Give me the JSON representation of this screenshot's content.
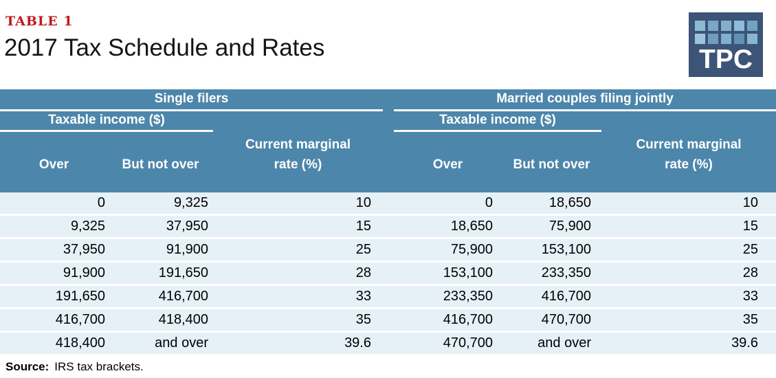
{
  "page": {
    "table_label": "TABLE 1",
    "title": "2017 Tax Schedule and Rates"
  },
  "logo": {
    "text": "TPC",
    "tiles": [
      "#8FBAD4",
      "#79A7C6",
      "#83B0CC",
      "#8FBCD8",
      "#74A2C2",
      "#9CC4DC",
      "#6E9DBE",
      "#7FB0CC",
      "#6291B4",
      "#88B6D2"
    ]
  },
  "colors": {
    "header_bg": "#4D86AB",
    "row_bg": "#E6F0F7",
    "accent_red": "#C0181A",
    "logo_bg": "#3C5477"
  },
  "table": {
    "sections": {
      "single": {
        "title": "Single filers",
        "income_group_header": "Taxable income ($)",
        "col_over": "Over",
        "col_but_not_over": "But not over",
        "col_rate": "Current marginal rate (%)",
        "rows": [
          [
            "0",
            "9,325",
            "10"
          ],
          [
            "9,325",
            "37,950",
            "15"
          ],
          [
            "37,950",
            "91,900",
            "25"
          ],
          [
            "91,900",
            "191,650",
            "28"
          ],
          [
            "191,650",
            "416,700",
            "33"
          ],
          [
            "416,700",
            "418,400",
            "35"
          ],
          [
            "418,400",
            "and over",
            "39.6"
          ]
        ]
      },
      "married": {
        "title": "Married couples filing jointly",
        "income_group_header": "Taxable income ($)",
        "col_over": "Over",
        "col_but_not_over": "But not over",
        "col_rate": "Current marginal rate (%)",
        "rows": [
          [
            "0",
            "18,650",
            "10"
          ],
          [
            "18,650",
            "75,900",
            "15"
          ],
          [
            "75,900",
            "153,100",
            "25"
          ],
          [
            "153,100",
            "233,350",
            "28"
          ],
          [
            "233,350",
            "416,700",
            "33"
          ],
          [
            "416,700",
            "470,700",
            "35"
          ],
          [
            "470,700",
            "and over",
            "39.6"
          ]
        ]
      }
    }
  },
  "source": {
    "label": "Source:",
    "text": "IRS tax brackets."
  },
  "chart_data": {
    "type": "table",
    "title": "2017 Tax Schedule and Rates",
    "table_label": "TABLE 1",
    "source": "Source: IRS tax brackets.",
    "sections": [
      {
        "name": "Single filers",
        "group_header": "Taxable income ($)",
        "columns": [
          "Over",
          "But not over",
          "Current marginal rate (%)"
        ],
        "rows": [
          [
            0,
            9325,
            10
          ],
          [
            9325,
            37950,
            15
          ],
          [
            37950,
            91900,
            25
          ],
          [
            91900,
            191650,
            28
          ],
          [
            191650,
            416700,
            33
          ],
          [
            416700,
            418400,
            35
          ],
          [
            418400,
            "and over",
            39.6
          ]
        ]
      },
      {
        "name": "Married couples filing jointly",
        "group_header": "Taxable income ($)",
        "columns": [
          "Over",
          "But not over",
          "Current marginal rate (%)"
        ],
        "rows": [
          [
            0,
            18650,
            10
          ],
          [
            18650,
            75900,
            15
          ],
          [
            75900,
            153100,
            25
          ],
          [
            153100,
            233350,
            28
          ],
          [
            233350,
            416700,
            33
          ],
          [
            416700,
            470700,
            35
          ],
          [
            470700,
            "and over",
            39.6
          ]
        ]
      }
    ]
  }
}
